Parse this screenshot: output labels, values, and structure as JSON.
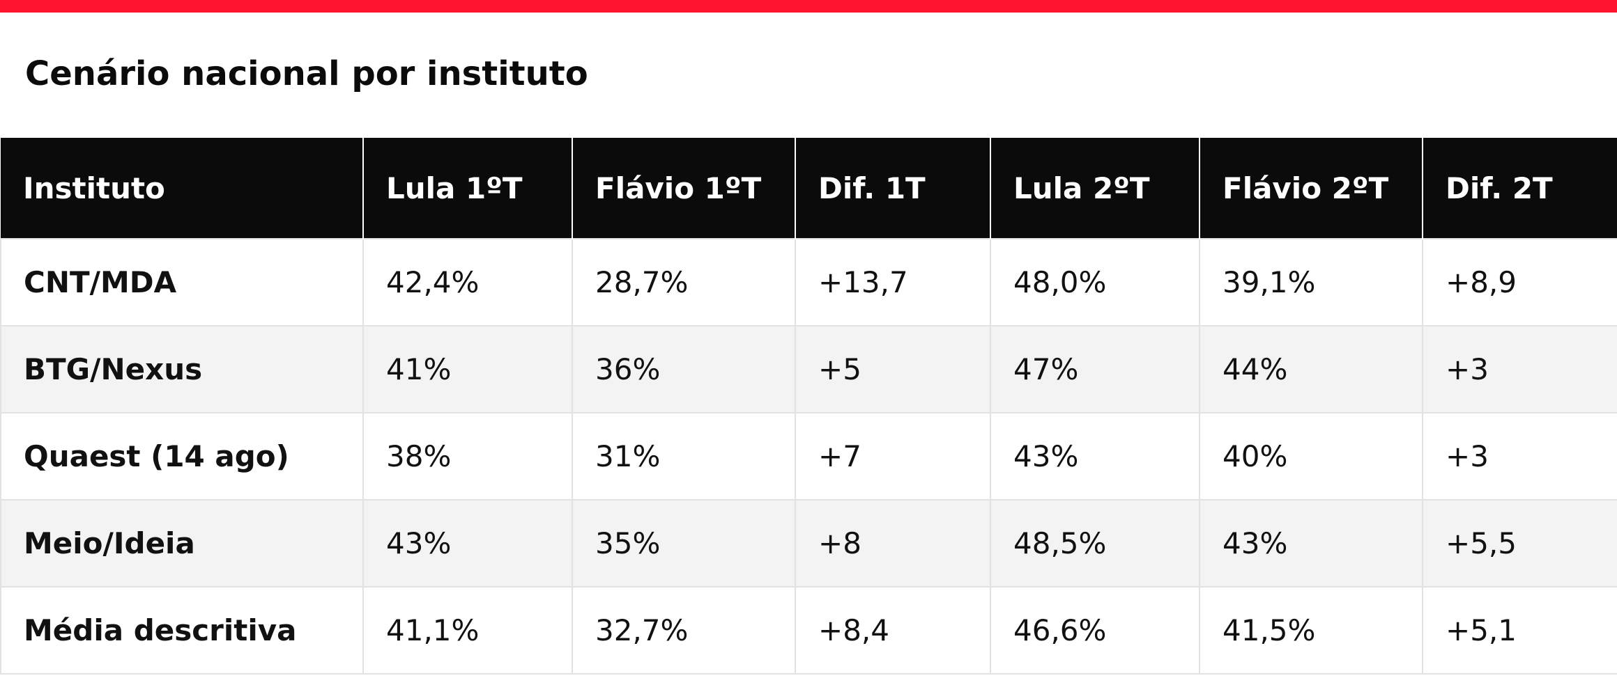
{
  "colors": {
    "accent_bar": "#ff1430",
    "header_bg": "#0b0b0b",
    "header_text": "#ffffff",
    "zebra_row": "#f3f3f3",
    "grid_line": "#e2e2e2"
  },
  "title": "Cenário nacional por instituto",
  "table": {
    "headers": [
      "Instituto",
      "Lula 1ºT",
      "Flávio 1ºT",
      "Dif. 1T",
      "Lula 2ºT",
      "Flávio 2ºT",
      "Dif. 2T"
    ],
    "rows": [
      [
        "CNT/MDA",
        "42,4%",
        "28,7%",
        "+13,7",
        "48,0%",
        "39,1%",
        "+8,9"
      ],
      [
        "BTG/Nexus",
        "41%",
        "36%",
        "+5",
        "47%",
        "44%",
        "+3"
      ],
      [
        "Quaest (14 ago)",
        "38%",
        "31%",
        "+7",
        "43%",
        "40%",
        "+3"
      ],
      [
        "Meio/Ideia",
        "43%",
        "35%",
        "+8",
        "48,5%",
        "43%",
        "+5,5"
      ],
      [
        "Média descritiva",
        "41,1%",
        "32,7%",
        "+8,4",
        "46,6%",
        "41,5%",
        "+5,1"
      ]
    ]
  }
}
